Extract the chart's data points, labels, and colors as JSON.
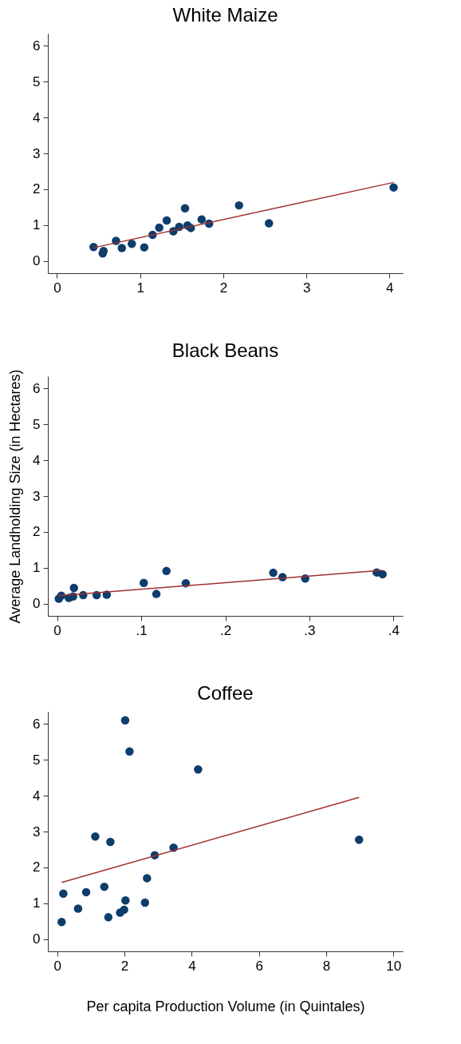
{
  "chart_data": [
    {
      "type": "scatter",
      "title": "White Maize",
      "xlim": [
        -0.11,
        4.16
      ],
      "ylim": [
        -0.34,
        6.34
      ],
      "xticks": [
        0,
        1,
        2,
        3,
        4
      ],
      "yticks": [
        0,
        1,
        2,
        3,
        4,
        5,
        6
      ],
      "grid": false,
      "series": [
        {
          "type": "scatter",
          "marker": "circle",
          "color": "#0d3d6b",
          "x": [
            0.44,
            0.55,
            0.56,
            0.71,
            0.78,
            0.9,
            1.05,
            1.15,
            1.23,
            1.32,
            1.4,
            1.47,
            1.54,
            1.57,
            1.61,
            1.74,
            1.83,
            2.19,
            2.55,
            4.05
          ],
          "values": [
            0.39,
            0.21,
            0.28,
            0.56,
            0.36,
            0.48,
            0.38,
            0.73,
            0.93,
            1.13,
            0.83,
            0.95,
            1.47,
            0.99,
            0.92,
            1.16,
            1.04,
            1.55,
            1.05,
            2.05
          ]
        },
        {
          "type": "line",
          "color": "#a03030",
          "x": [
            0.44,
            4.05
          ],
          "values": [
            0.37,
            2.19
          ]
        }
      ]
    },
    {
      "type": "scatter",
      "title": "Black Beans",
      "ylabel": "Average Landholding Size (in Hectares)",
      "xlim": [
        -0.011,
        0.411
      ],
      "ylim": [
        -0.34,
        6.34
      ],
      "xticks": [
        0,
        {
          "value": 0.1,
          "label": ".1"
        },
        {
          "value": 0.2,
          "label": ".2"
        },
        {
          "value": 0.3,
          "label": ".3"
        },
        {
          "value": 0.4,
          "label": ".4"
        }
      ],
      "yticks": [
        0,
        1,
        2,
        3,
        4,
        5,
        6
      ],
      "grid": false,
      "series": [
        {
          "type": "scatter",
          "marker": "circle",
          "color": "#0d3d6b",
          "x": [
            0.002,
            0.005,
            0.014,
            0.019,
            0.02,
            0.031,
            0.047,
            0.059,
            0.103,
            0.118,
            0.13,
            0.153,
            0.257,
            0.268,
            0.295,
            0.38,
            0.387
          ],
          "values": [
            0.14,
            0.22,
            0.16,
            0.2,
            0.44,
            0.24,
            0.24,
            0.25,
            0.58,
            0.27,
            0.91,
            0.57,
            0.86,
            0.74,
            0.7,
            0.87,
            0.82
          ]
        },
        {
          "type": "line",
          "color": "#a03030",
          "x": [
            0.002,
            0.386
          ],
          "values": [
            0.22,
            0.93
          ]
        }
      ]
    },
    {
      "type": "scatter",
      "title": "Coffee",
      "xlabel": "Per capita Production Volume (in Quintales)",
      "xlim": [
        -0.28,
        10.28
      ],
      "ylim": [
        -0.34,
        6.34
      ],
      "xticks": [
        0,
        2,
        4,
        6,
        8,
        10
      ],
      "yticks": [
        0,
        1,
        2,
        3,
        4,
        5,
        6
      ],
      "grid": false,
      "series": [
        {
          "type": "scatter",
          "marker": "circle",
          "color": "#0d3d6b",
          "x": [
            0.13,
            0.18,
            0.62,
            0.86,
            1.13,
            1.4,
            1.52,
            1.58,
            1.87,
            1.99,
            2.02,
            2.03,
            2.15,
            2.61,
            2.67,
            2.9,
            3.46,
            4.19,
            8.98
          ],
          "values": [
            0.48,
            1.27,
            0.85,
            1.31,
            2.86,
            1.46,
            0.61,
            2.71,
            0.74,
            0.82,
            6.1,
            1.08,
            5.23,
            1.02,
            1.7,
            2.34,
            2.55,
            4.73,
            2.77
          ]
        },
        {
          "type": "line",
          "color": "#a03030",
          "x": [
            0.13,
            8.98
          ],
          "values": [
            1.58,
            3.95
          ]
        }
      ]
    }
  ]
}
